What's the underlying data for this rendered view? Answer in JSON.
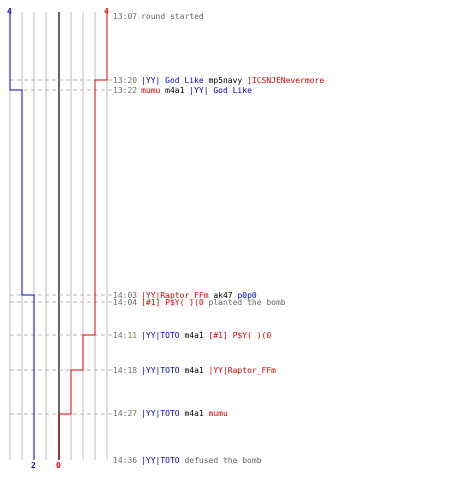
{
  "colors": {
    "ct": "#0000cc",
    "t": "#dd0000",
    "time": "#6e6e6e",
    "system": "#666666",
    "neutral": "#000000",
    "grid": "#bbbbbb",
    "dash": "#bbbbbb",
    "center": "#666666"
  },
  "counts": {
    "ct_start": "4",
    "t_start": "4",
    "ct_end": "2",
    "t_end": "0"
  },
  "events": [
    {
      "time": "13:07",
      "parts": [
        {
          "text": "round started",
          "type": "system"
        }
      ]
    },
    {
      "time": "13:20",
      "parts": [
        {
          "text": "|YY| God Like",
          "type": "ct"
        },
        {
          "text": " mp5navy ",
          "type": "neutral"
        },
        {
          "text": "]ICSNJENevermore",
          "type": "t"
        }
      ]
    },
    {
      "time": "13:22",
      "parts": [
        {
          "text": "mumu",
          "type": "t"
        },
        {
          "text": " m4a1 ",
          "type": "neutral"
        },
        {
          "text": "|YY| God Like",
          "type": "ct"
        }
      ]
    },
    {
      "time": "14:03",
      "parts": [
        {
          "text": "|YY|Raptor_FFm",
          "type": "t"
        },
        {
          "text": " ak47 ",
          "type": "neutral"
        },
        {
          "text": "p0p0",
          "type": "ct"
        }
      ]
    },
    {
      "time": "14:04",
      "parts": [
        {
          "text": "[#1] P$Y( )(0",
          "type": "t"
        },
        {
          "text": " planted the bomb",
          "type": "system"
        }
      ]
    },
    {
      "time": "14:11",
      "parts": [
        {
          "text": "|YY|TOTO",
          "type": "ct"
        },
        {
          "text": " m4a1 ",
          "type": "neutral"
        },
        {
          "text": "[#1] P$Y( )(0",
          "type": "t"
        }
      ]
    },
    {
      "time": "14:18",
      "parts": [
        {
          "text": "|YY|TOTO",
          "type": "ct"
        },
        {
          "text": " m4a1 ",
          "type": "neutral"
        },
        {
          "text": "|YY|Raptor_FFm",
          "type": "t"
        }
      ]
    },
    {
      "time": "14:27",
      "parts": [
        {
          "text": "|YY|TOTO",
          "type": "ct"
        },
        {
          "text": " m4a1 ",
          "type": "neutral"
        },
        {
          "text": "mumu",
          "type": "t"
        }
      ]
    },
    {
      "time": "14:36",
      "parts": [
        {
          "text": "|YY|TOTO",
          "type": "ct"
        },
        {
          "text": " defused the bomb",
          "type": "system"
        }
      ]
    }
  ]
}
